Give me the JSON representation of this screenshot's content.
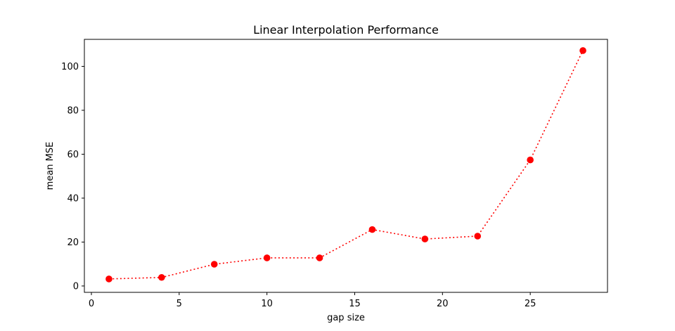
{
  "chart_data": {
    "type": "line",
    "title": "Linear Interpolation Performance",
    "xlabel": "gap size",
    "ylabel": "mean MSE",
    "xlim": [
      -0.4,
      29.4
    ],
    "ylim": [
      -2.9,
      112.3
    ],
    "xticks": [
      0,
      5,
      10,
      15,
      20,
      25
    ],
    "yticks": [
      0,
      20,
      40,
      60,
      80,
      100
    ],
    "grid": false,
    "series": [
      {
        "color": "#ff0000",
        "line_style": "dotted",
        "marker": "circle",
        "x": [
          1,
          4,
          7,
          10,
          13,
          16,
          19,
          22,
          25,
          28
        ],
        "values": [
          3.2,
          3.9,
          9.9,
          12.8,
          12.8,
          25.7,
          21.4,
          22.7,
          57.4,
          107.2
        ]
      }
    ]
  }
}
